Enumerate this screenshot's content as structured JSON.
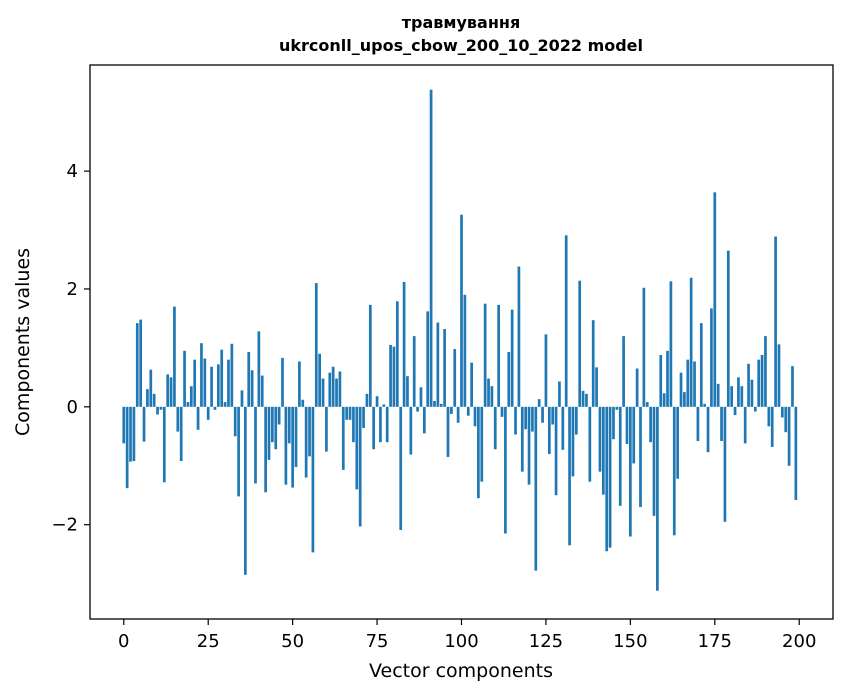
{
  "chart_data": {
    "type": "bar",
    "title_line1": "травмування",
    "title_line2": "ukrconll_upos_cbow_200_10_2022 model",
    "xlabel": "Vector components",
    "ylabel": "Components values",
    "xlim": [
      -10,
      210
    ],
    "ylim": [
      -3.6,
      5.8
    ],
    "xticks": [
      0,
      25,
      50,
      75,
      100,
      125,
      150,
      175,
      200
    ],
    "xtick_labels": [
      "0",
      "25",
      "50",
      "75",
      "100",
      "125",
      "150",
      "175",
      "200"
    ],
    "yticks": [
      -2,
      0,
      2,
      4
    ],
    "ytick_labels": [
      "−2",
      "0",
      "2",
      "4"
    ],
    "grid": false,
    "bar_color": "#1f77b4",
    "values": [
      -0.62,
      -1.38,
      -0.93,
      -0.92,
      1.42,
      1.48,
      -0.59,
      0.3,
      0.63,
      0.22,
      -0.13,
      -0.05,
      -1.28,
      0.55,
      0.5,
      1.7,
      -0.42,
      -0.92,
      0.95,
      0.08,
      0.35,
      0.8,
      -0.39,
      1.08,
      0.82,
      -0.22,
      0.68,
      -0.05,
      0.72,
      0.97,
      0.08,
      0.8,
      1.07,
      -0.5,
      -1.52,
      0.28,
      -2.85,
      0.93,
      0.62,
      -1.3,
      1.28,
      0.53,
      -1.45,
      -0.9,
      -0.6,
      -0.72,
      -0.3,
      0.83,
      -1.32,
      -0.62,
      -1.37,
      -1.02,
      0.77,
      0.12,
      -1.2,
      -0.84,
      -2.47,
      2.1,
      0.9,
      0.48,
      -0.76,
      0.58,
      0.68,
      0.48,
      0.6,
      -1.07,
      -0.22,
      -0.22,
      -0.6,
      -1.4,
      -2.03,
      -0.36,
      0.22,
      1.73,
      -0.72,
      0.18,
      -0.6,
      0.04,
      -0.6,
      1.05,
      1.02,
      1.79,
      -2.09,
      2.12,
      0.52,
      -0.81,
      1.2,
      -0.08,
      0.33,
      -0.45,
      1.62,
      5.38,
      0.1,
      1.43,
      0.05,
      1.32,
      -0.85,
      -0.12,
      0.98,
      -0.27,
      3.26,
      1.9,
      -0.15,
      0.75,
      -0.33,
      -1.55,
      -1.27,
      1.75,
      0.48,
      0.35,
      -0.72,
      1.73,
      -0.17,
      -2.15,
      0.93,
      1.65,
      -0.47,
      2.38,
      -1.1,
      -0.38,
      -1.32,
      -0.42,
      -2.78,
      0.13,
      -0.27,
      1.23,
      -0.8,
      -0.3,
      -1.5,
      0.43,
      -0.73,
      2.91,
      -2.35,
      -1.18,
      -0.47,
      2.14,
      0.27,
      0.22,
      -1.27,
      1.47,
      0.67,
      -1.1,
      -1.49,
      -2.45,
      -2.39,
      -0.55,
      -0.05,
      -1.68,
      1.2,
      -0.63,
      -2.2,
      -0.96,
      0.65,
      -1.7,
      2.02,
      0.08,
      -0.6,
      -1.85,
      -3.12,
      0.88,
      0.23,
      0.95,
      2.13,
      -2.18,
      -1.22,
      0.58,
      0.25,
      0.8,
      2.19,
      0.77,
      -0.58,
      1.42,
      0.05,
      -0.77,
      1.67,
      3.64,
      0.39,
      -0.58,
      -1.95,
      2.65,
      0.35,
      -0.14,
      0.5,
      0.35,
      -0.62,
      0.73,
      0.46,
      -0.08,
      0.8,
      0.88,
      1.2,
      -0.33,
      -0.68,
      2.89,
      1.06,
      -0.18,
      -0.43,
      -1.0,
      0.69,
      -1.58
    ]
  }
}
